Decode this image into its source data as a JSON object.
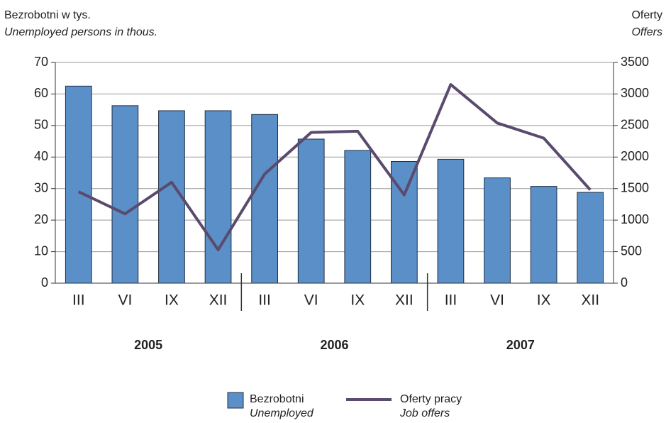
{
  "chart_data": {
    "type": "bar_line",
    "ylabel": "Bezrobotni w tys.",
    "ylabel_en": "Unemployed persons in thous.",
    "y2label": "Oferty",
    "y2label_en": "Offers",
    "categories": [
      "III",
      "VI",
      "IX",
      "XII",
      "III",
      "VI",
      "IX",
      "XII",
      "III",
      "VI",
      "IX",
      "XII"
    ],
    "year_labels": [
      "2005",
      "2006",
      "2007"
    ],
    "series": [
      {
        "name": "Bezrobotni",
        "name_en": "Unemployed",
        "type": "bar",
        "color": "#5b8fc7",
        "values": [
          62.5,
          56.3,
          54.7,
          54.7,
          53.5,
          45.7,
          42.1,
          38.6,
          39.3,
          33.4,
          30.7,
          28.8
        ]
      },
      {
        "name": "Oferty pracy",
        "name_en": "Job offers",
        "type": "line",
        "axis": "y2",
        "color": "#5a4a6e",
        "values": [
          1450,
          1100,
          1600,
          530,
          1730,
          2390,
          2410,
          1400,
          3150,
          2540,
          2300,
          1480
        ]
      }
    ],
    "ylim": [
      0,
      70
    ],
    "yticks": [
      0,
      10,
      20,
      30,
      40,
      50,
      60,
      70
    ],
    "y2lim": [
      0,
      3500
    ],
    "y2ticks": [
      0,
      500,
      1000,
      1500,
      2000,
      2500,
      3000,
      3500
    ],
    "grid": true
  }
}
